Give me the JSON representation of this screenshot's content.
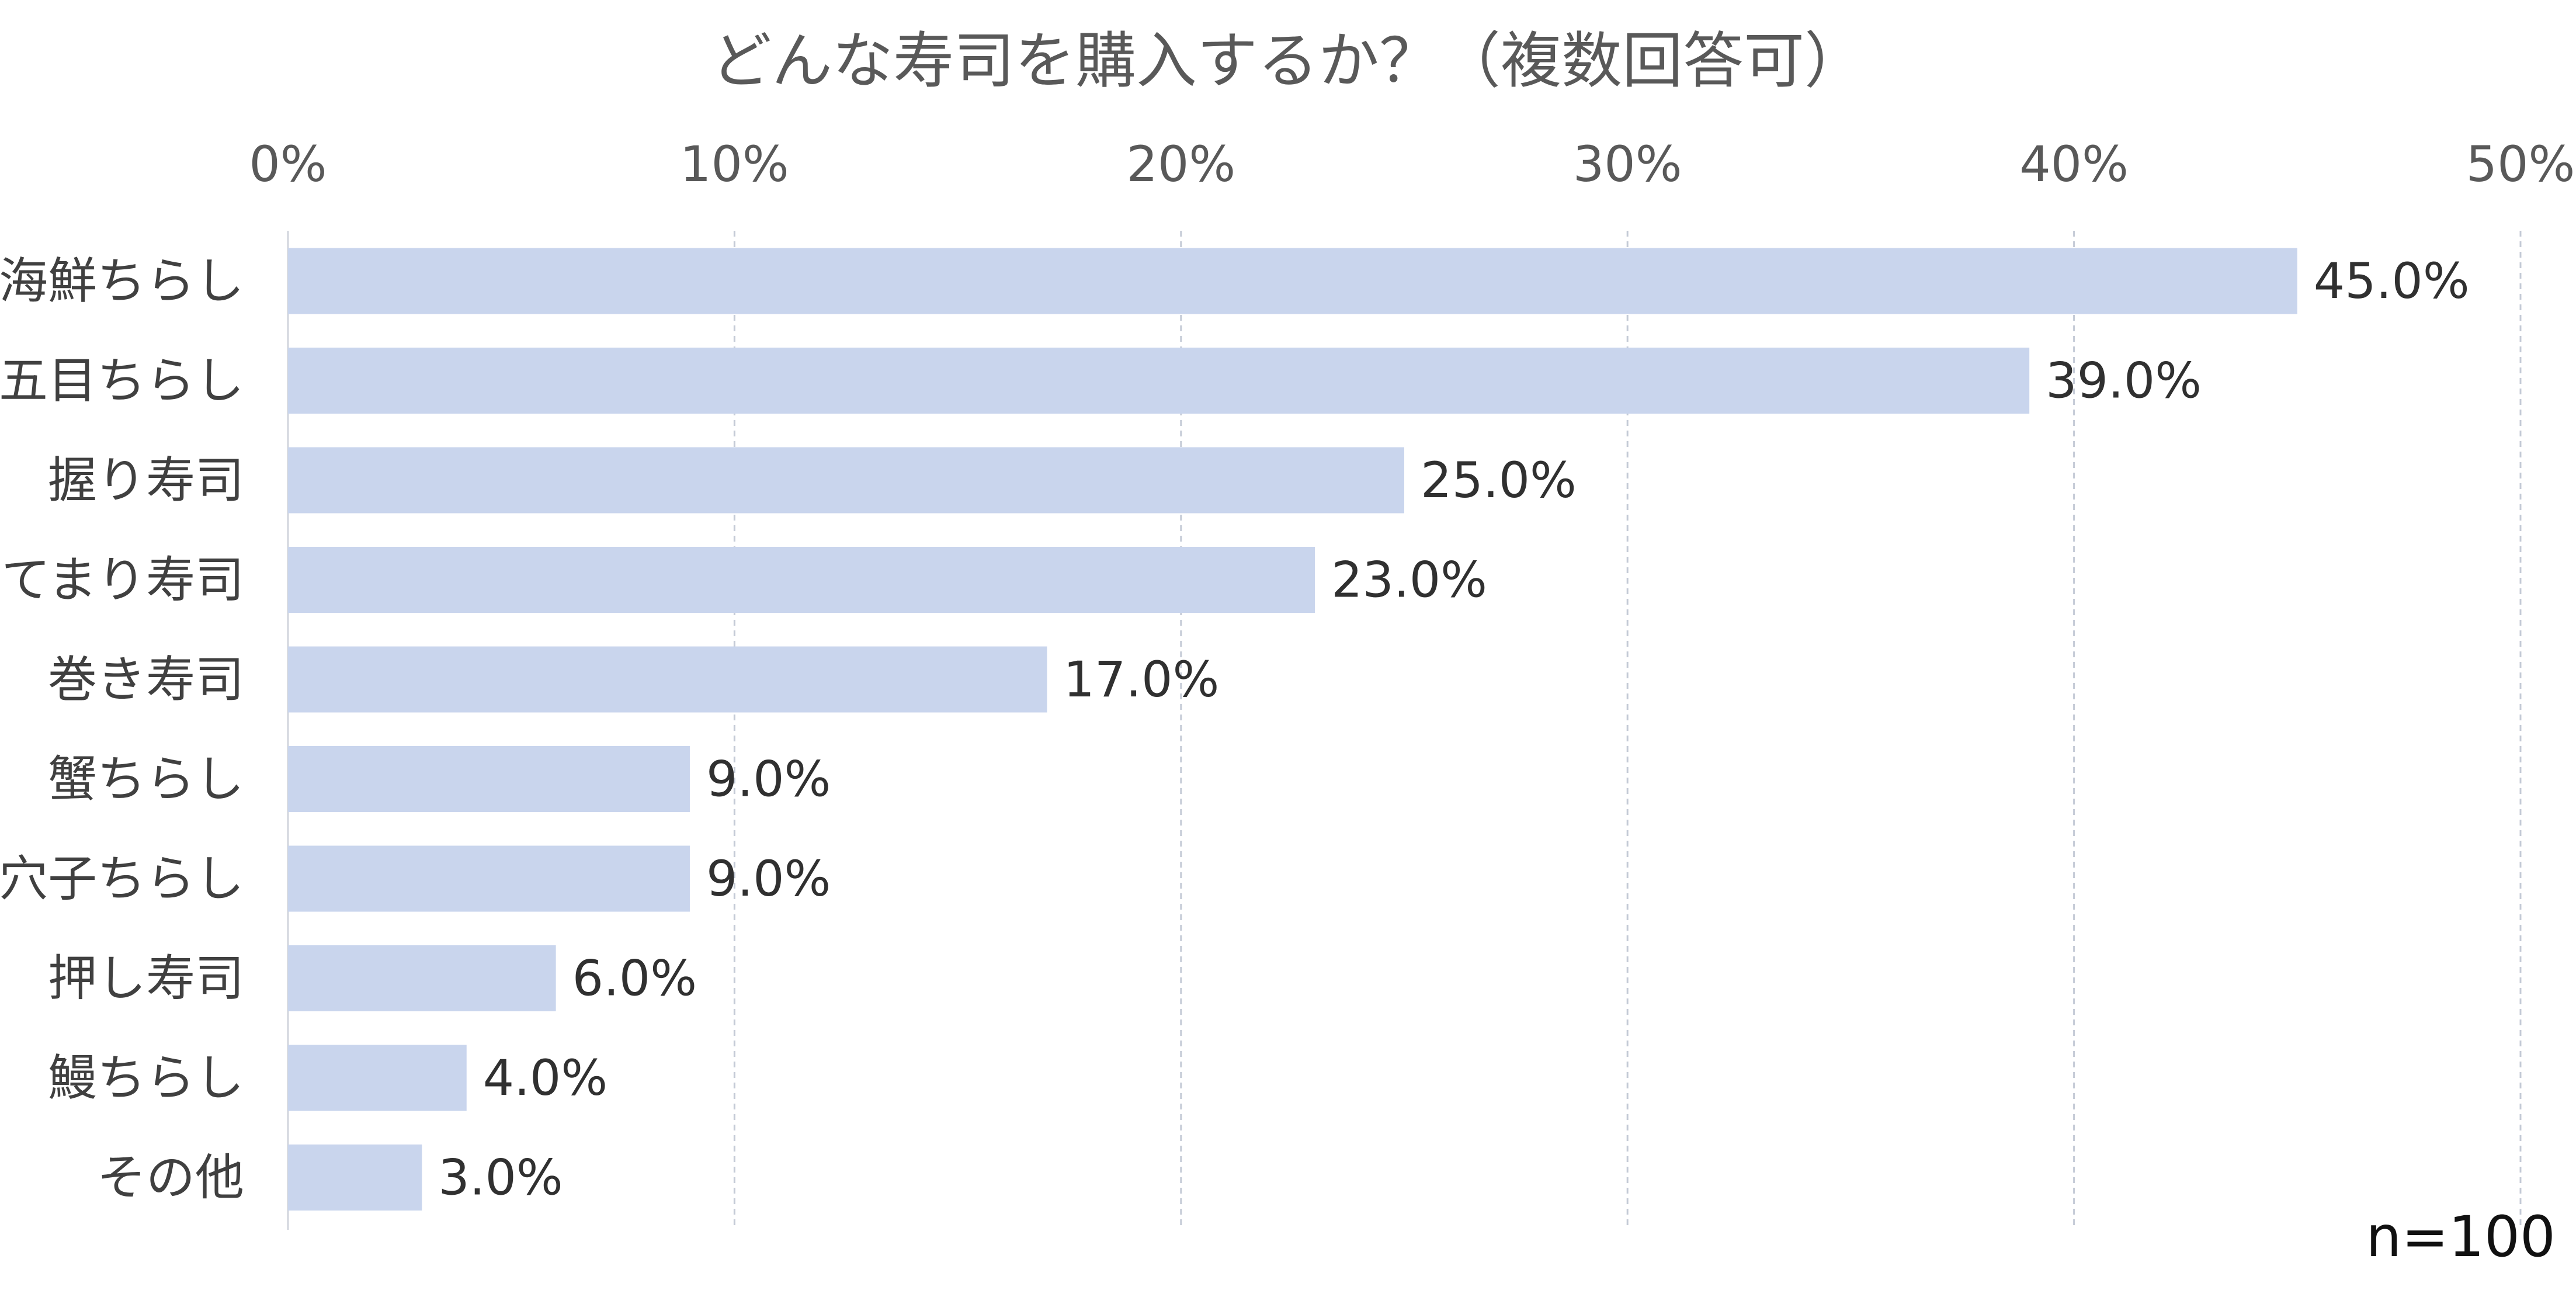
{
  "chart_data": {
    "type": "bar",
    "orientation": "horizontal",
    "title": "どんな寿司を購入するか？（複数回答可）",
    "categories": [
      "海鮮ちらし",
      "五目ちらし",
      "握り寿司",
      "てまり寿司",
      "巻き寿司",
      "蟹ちらし",
      "穴子ちらし",
      "押し寿司",
      "鰻ちらし",
      "その他"
    ],
    "values": [
      45.0,
      39.0,
      25.0,
      23.0,
      17.0,
      9.0,
      9.0,
      6.0,
      4.0,
      3.0
    ],
    "value_labels": [
      "45.0%",
      "39.0%",
      "25.0%",
      "23.0%",
      "17.0%",
      "9.0%",
      "9.0%",
      "6.0%",
      "4.0%",
      "3.0%"
    ],
    "x_ticks": [
      "0%",
      "10%",
      "20%",
      "30%",
      "40%",
      "50%"
    ],
    "xlim": [
      0,
      50
    ],
    "xlabel": "",
    "ylabel": "",
    "grid": true,
    "axis_position": "top",
    "note": "n=100",
    "bar_color": "#c9d5ed",
    "grid_color": "#c4cad6"
  }
}
